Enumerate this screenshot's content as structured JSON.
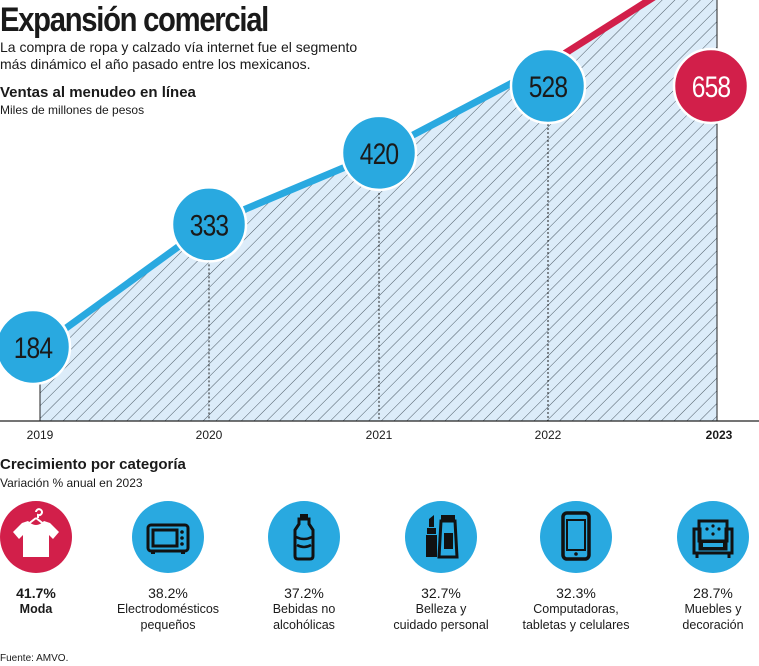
{
  "header": {
    "title": "Expansión comercial",
    "subtitle": "La compra de ropa y calzado vía internet fue el segmento más dinámico el año pasado entre los mexicanos."
  },
  "chart_section": {
    "title": "Ventas al menudeo en línea",
    "unit": "Miles de millones de pesos"
  },
  "chart_data": {
    "type": "area",
    "title": "Ventas al menudeo en línea",
    "subtitle": "Miles de millones de pesos",
    "x": [
      "2019",
      "2020",
      "2021",
      "2022",
      "2023"
    ],
    "values": [
      184,
      333,
      420,
      528,
      658
    ],
    "highlight": "2023",
    "colors": {
      "series": "#29a9e0",
      "highlight": "#d21f4a"
    }
  },
  "categories_section": {
    "title": "Crecimiento por categoría",
    "subtitle": "Variación % anual en 2023",
    "items": [
      {
        "pct": "41.7%",
        "label": "Moda",
        "icon": "tshirt-icon",
        "highlight": true
      },
      {
        "pct": "38.2%",
        "label": "Electrodomésticos pequeños",
        "icon": "microwave-icon",
        "highlight": false
      },
      {
        "pct": "37.2%",
        "label": "Bebidas no alcohólicas",
        "icon": "bottle-icon",
        "highlight": false
      },
      {
        "pct": "32.7%",
        "label": "Belleza y cuidado personal",
        "icon": "lipstick-icon",
        "highlight": false
      },
      {
        "pct": "32.3%",
        "label": "Computadoras, tabletas y celulares",
        "icon": "smartphone-icon",
        "highlight": false
      },
      {
        "pct": "28.7%",
        "label": "Muebles y decoración",
        "icon": "armchair-icon",
        "highlight": false
      }
    ]
  },
  "source": "Fuente: AMVO.",
  "colors": {
    "blue": "#29a9e0",
    "red": "#d21f4a",
    "area": "#dcecf9"
  }
}
